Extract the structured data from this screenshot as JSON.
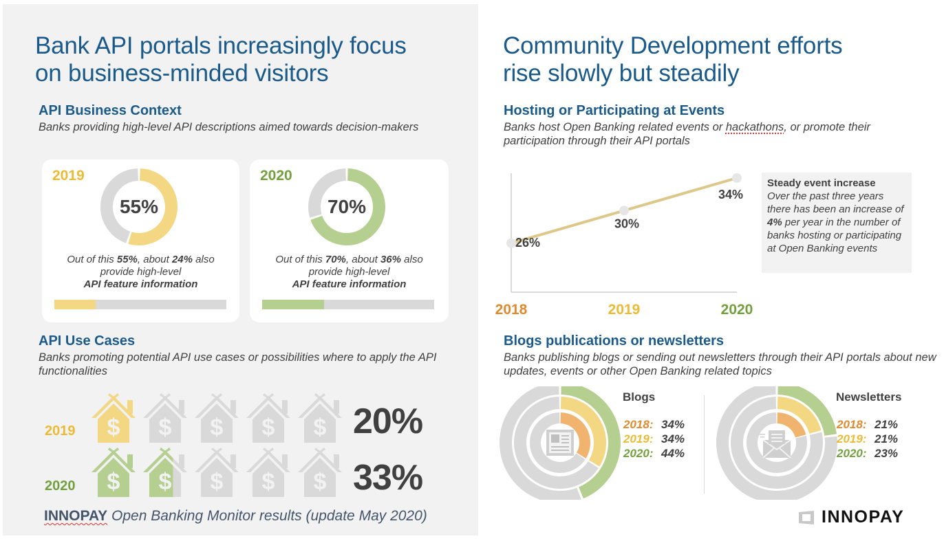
{
  "left": {
    "title_line1": "Bank API portals increasingly focus",
    "title_line2": "on business-minded visitors",
    "business_context": {
      "heading": "API Business Context",
      "subtitle": "Banks providing high-level API descriptions aimed towards decision-makers",
      "cards": [
        {
          "year": "2019",
          "value_label": "55%",
          "value": 55,
          "sub_pct": 24,
          "text_pre": "Out of this ",
          "text_pct": "55%",
          "text_mid": ", about ",
          "text_sub": "24%",
          "text_post": " also",
          "text_line2": "provide high-level",
          "text_line3": "API feature information",
          "color": "#f3d783",
          "year_color": "#ecbb35"
        },
        {
          "year": "2020",
          "value_label": "70%",
          "value": 70,
          "sub_pct": 36,
          "text_pre": "Out of this ",
          "text_pct": "70%",
          "text_mid": ", about ",
          "text_sub": "36%",
          "text_post": " also",
          "text_line2": "provide high-level",
          "text_line3": "API feature information",
          "color": "#b4cf8f",
          "year_color": "#72a03c"
        }
      ]
    },
    "use_cases": {
      "heading": "API Use Cases",
      "subtitle": "Banks promoting potential API use cases or possibilities where to apply the API functionalities",
      "rows": [
        {
          "year": "2019",
          "value_label": "20%",
          "value": 20,
          "color": "#f3d783",
          "year_color": "#ecbb35"
        },
        {
          "year": "2020",
          "value_label": "33%",
          "value": 33,
          "color": "#b4cf8f",
          "year_color": "#72a03c"
        }
      ],
      "icon": "house-dollar-icon"
    },
    "footer": {
      "brand": "INNOPAY",
      "text": " Open Banking Monitor results (update May 2020)"
    }
  },
  "right": {
    "title_line1": "Community Development efforts",
    "title_line2": "rise slowly but steadily",
    "events": {
      "heading": "Hosting or Participating at Events",
      "subtitle_pre": "Banks host Open Banking related events or ",
      "subtitle_spell": "hackathons",
      "subtitle_post": ", or promote their participation through their API portals",
      "callout": {
        "title": "Steady event increase",
        "body_pre": "Over the past three years there has been an increase of ",
        "body_bold": "4%",
        "body_post": " per year in the number of banks hosting or participating at Open Banking events"
      }
    },
    "blogs": {
      "heading": "Blogs publications or newsletters",
      "subtitle": "Banks publishing blogs or sending out newsletters through their API portals about new updates, events or other Open Banking related topics",
      "charts": [
        {
          "title": "Blogs",
          "icon": "newspaper-icon",
          "entries": [
            {
              "year": "2018:",
              "value_label": "34%",
              "value": 34,
              "color": "#f0b46e",
              "year_color": "#e08a2e"
            },
            {
              "year": "2019:",
              "value_label": "34%",
              "value": 34,
              "color": "#f3d783",
              "year_color": "#ecbb35"
            },
            {
              "year": "2020:",
              "value_label": "44%",
              "value": 44,
              "color": "#b4cf8f",
              "year_color": "#72a03c"
            }
          ]
        },
        {
          "title": "Newsletters",
          "icon": "envelope-icon",
          "entries": [
            {
              "year": "2018:",
              "value_label": "21%",
              "value": 21,
              "color": "#f0b46e",
              "year_color": "#e08a2e"
            },
            {
              "year": "2019:",
              "value_label": "21%",
              "value": 21,
              "color": "#f3d783",
              "year_color": "#ecbb35"
            },
            {
              "year": "2020:",
              "value_label": "23%",
              "value": 23,
              "color": "#b4cf8f",
              "year_color": "#72a03c"
            }
          ]
        }
      ]
    },
    "logo": "INNOPAY"
  },
  "chart_data": [
    {
      "type": "line",
      "title": "Hosting or Participating at Events",
      "categories": [
        "2018",
        "2019",
        "2020"
      ],
      "category_colors": [
        "#e08a2e",
        "#ecbb35",
        "#72a03c"
      ],
      "values": [
        26,
        30,
        34
      ],
      "data_labels": [
        "26%",
        "30%",
        "34%"
      ],
      "ylim": [
        20,
        35
      ],
      "line_color": "#dcc98a",
      "grid": false
    },
    {
      "type": "pie",
      "title": "API Business Context",
      "series": [
        {
          "name": "2019",
          "values": [
            55,
            45
          ]
        },
        {
          "name": "2020",
          "values": [
            70,
            30
          ]
        }
      ]
    },
    {
      "type": "pie",
      "title": "Blogs",
      "series": [
        {
          "name": "2018",
          "values": [
            34
          ]
        },
        {
          "name": "2019",
          "values": [
            34
          ]
        },
        {
          "name": "2020",
          "values": [
            44
          ]
        }
      ]
    },
    {
      "type": "pie",
      "title": "Newsletters",
      "series": [
        {
          "name": "2018",
          "values": [
            21
          ]
        },
        {
          "name": "2019",
          "values": [
            21
          ]
        },
        {
          "name": "2020",
          "values": [
            23
          ]
        }
      ]
    }
  ],
  "colors": {
    "title_blue": "#1a5a8a",
    "grey": "#d9d9d9",
    "text": "#404040"
  }
}
